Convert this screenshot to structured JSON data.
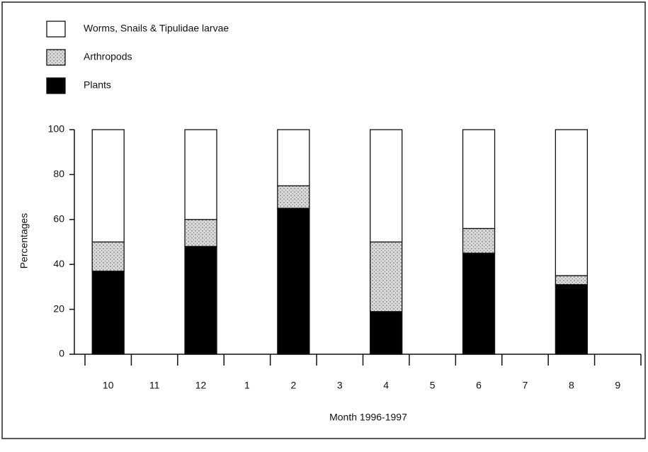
{
  "chart_data": {
    "type": "stacked_bar",
    "categories": [
      "10",
      "11",
      "12",
      "1",
      "2",
      "3",
      "4",
      "5",
      "6",
      "7",
      "8",
      "9"
    ],
    "series": [
      {
        "name": "Plants",
        "color": "#000000",
        "values": [
          37,
          null,
          48,
          null,
          65,
          null,
          19,
          null,
          45,
          null,
          31,
          null
        ]
      },
      {
        "name": "Arthropods",
        "color": "#cfcfcf",
        "values": [
          13,
          null,
          12,
          null,
          10,
          null,
          31,
          null,
          11,
          null,
          4,
          null
        ]
      },
      {
        "name": "Worms, Snails & Tipulidae larvae",
        "color": "#ffffff",
        "values": [
          50,
          null,
          40,
          null,
          25,
          null,
          50,
          null,
          44,
          null,
          65,
          null
        ]
      }
    ],
    "x_label": "Month 1996-1997",
    "y_label": "Percentages",
    "ylim": [
      0,
      100
    ],
    "yticks": [
      0,
      20,
      40,
      60,
      80,
      100
    ]
  }
}
